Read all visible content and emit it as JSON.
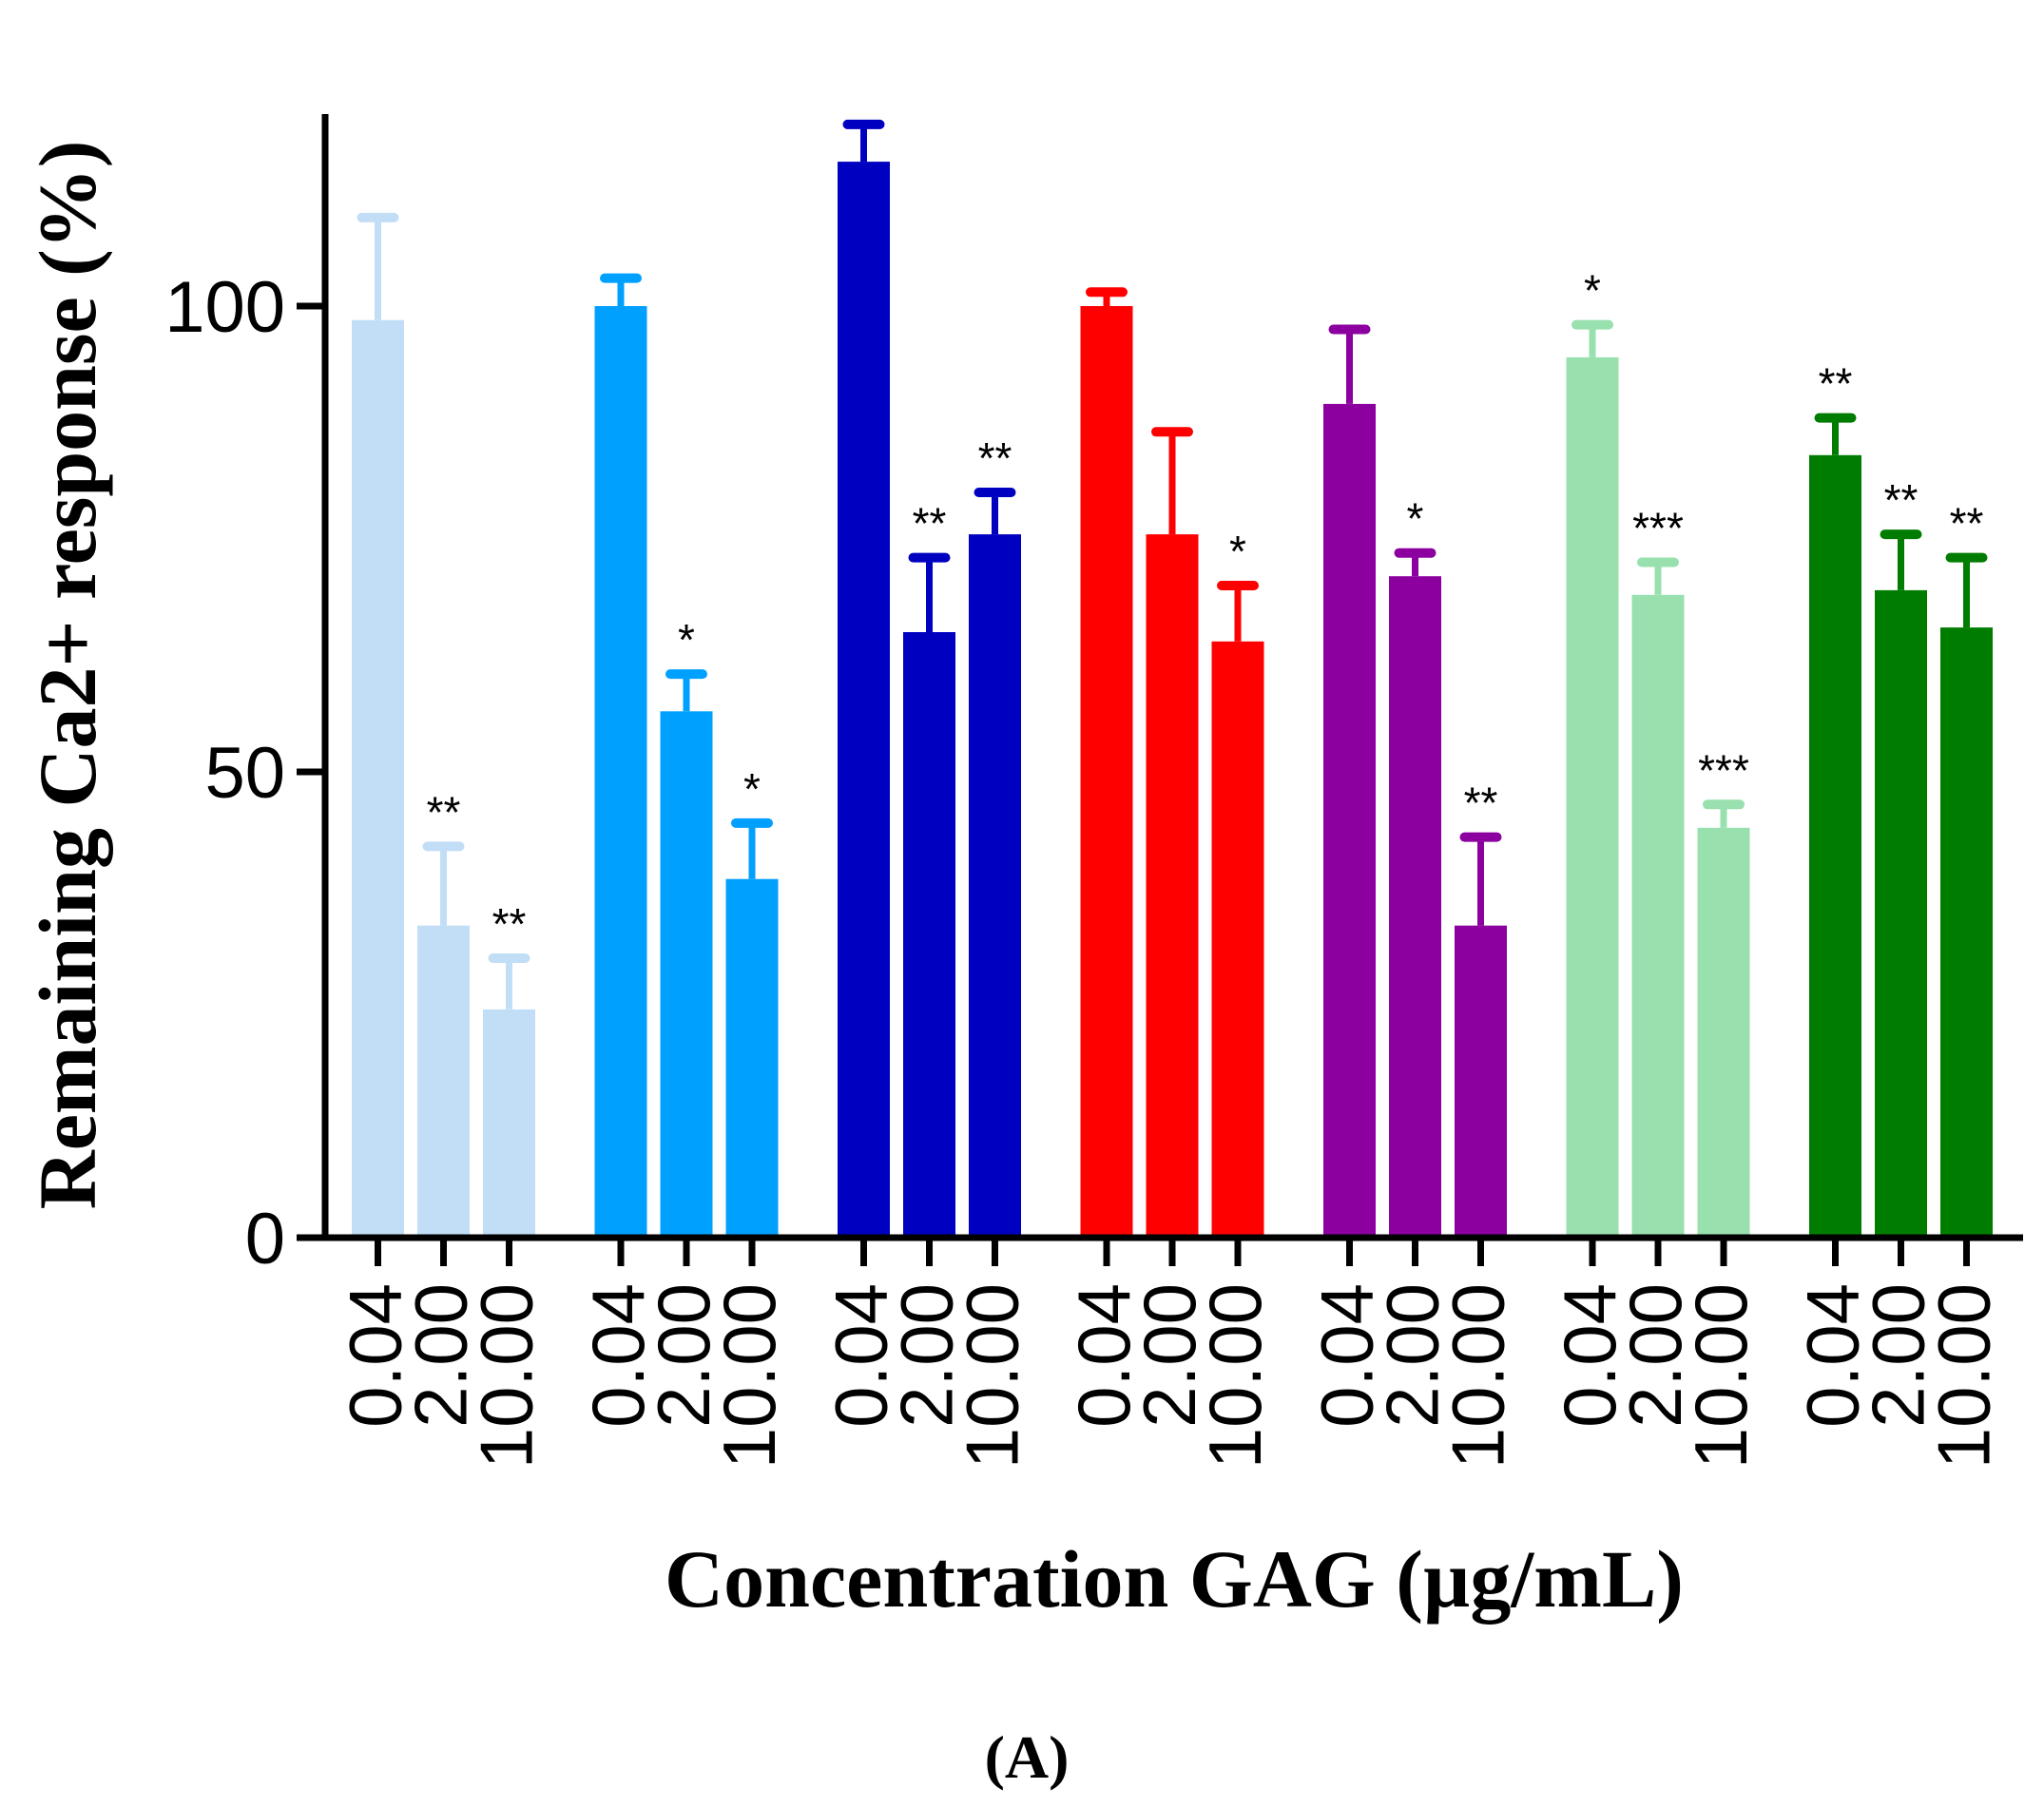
{
  "chart_data": {
    "type": "bar",
    "ylabel": "Remaining Ca2+ response (%)",
    "xlabel": "Concentration GAG (µg/mL)",
    "panel_label": "(A)",
    "ylim": [
      0,
      120
    ],
    "yticks": [
      0,
      50,
      100
    ],
    "concentration_labels": [
      "0.04",
      "2.00",
      "10.00"
    ],
    "groups": [
      {
        "color": "#c2def7",
        "values": [
          98.5,
          33.5,
          24.5
        ],
        "errors": [
          11,
          8.5,
          5.5
        ],
        "sig": [
          "",
          "**",
          "**"
        ]
      },
      {
        "color": "#00a0ff",
        "values": [
          100,
          56.5,
          38.5
        ],
        "errors": [
          3,
          4,
          6
        ],
        "sig": [
          "",
          "*",
          "*"
        ]
      },
      {
        "color": "#0000c0",
        "values": [
          115.5,
          65,
          75.5
        ],
        "errors": [
          4,
          8,
          4.5
        ],
        "sig": [
          "",
          "**",
          "**"
        ]
      },
      {
        "color": "#ff0000",
        "values": [
          100,
          75.5,
          64
        ],
        "errors": [
          1.5,
          11,
          6
        ],
        "sig": [
          "",
          "",
          "*"
        ]
      },
      {
        "color": "#8b009f",
        "values": [
          89.5,
          71,
          33.5
        ],
        "errors": [
          8,
          2.5,
          9.5
        ],
        "sig": [
          "",
          "*",
          "**"
        ]
      },
      {
        "color": "#98e0ae",
        "values": [
          94.5,
          69,
          44
        ],
        "errors": [
          3.5,
          3.5,
          2.5
        ],
        "sig": [
          "*",
          "***",
          "***"
        ]
      },
      {
        "color": "#007d00",
        "values": [
          84,
          69.5,
          65.5
        ],
        "errors": [
          4,
          6,
          7.5
        ],
        "sig": [
          "**",
          "**",
          "**"
        ]
      }
    ]
  }
}
